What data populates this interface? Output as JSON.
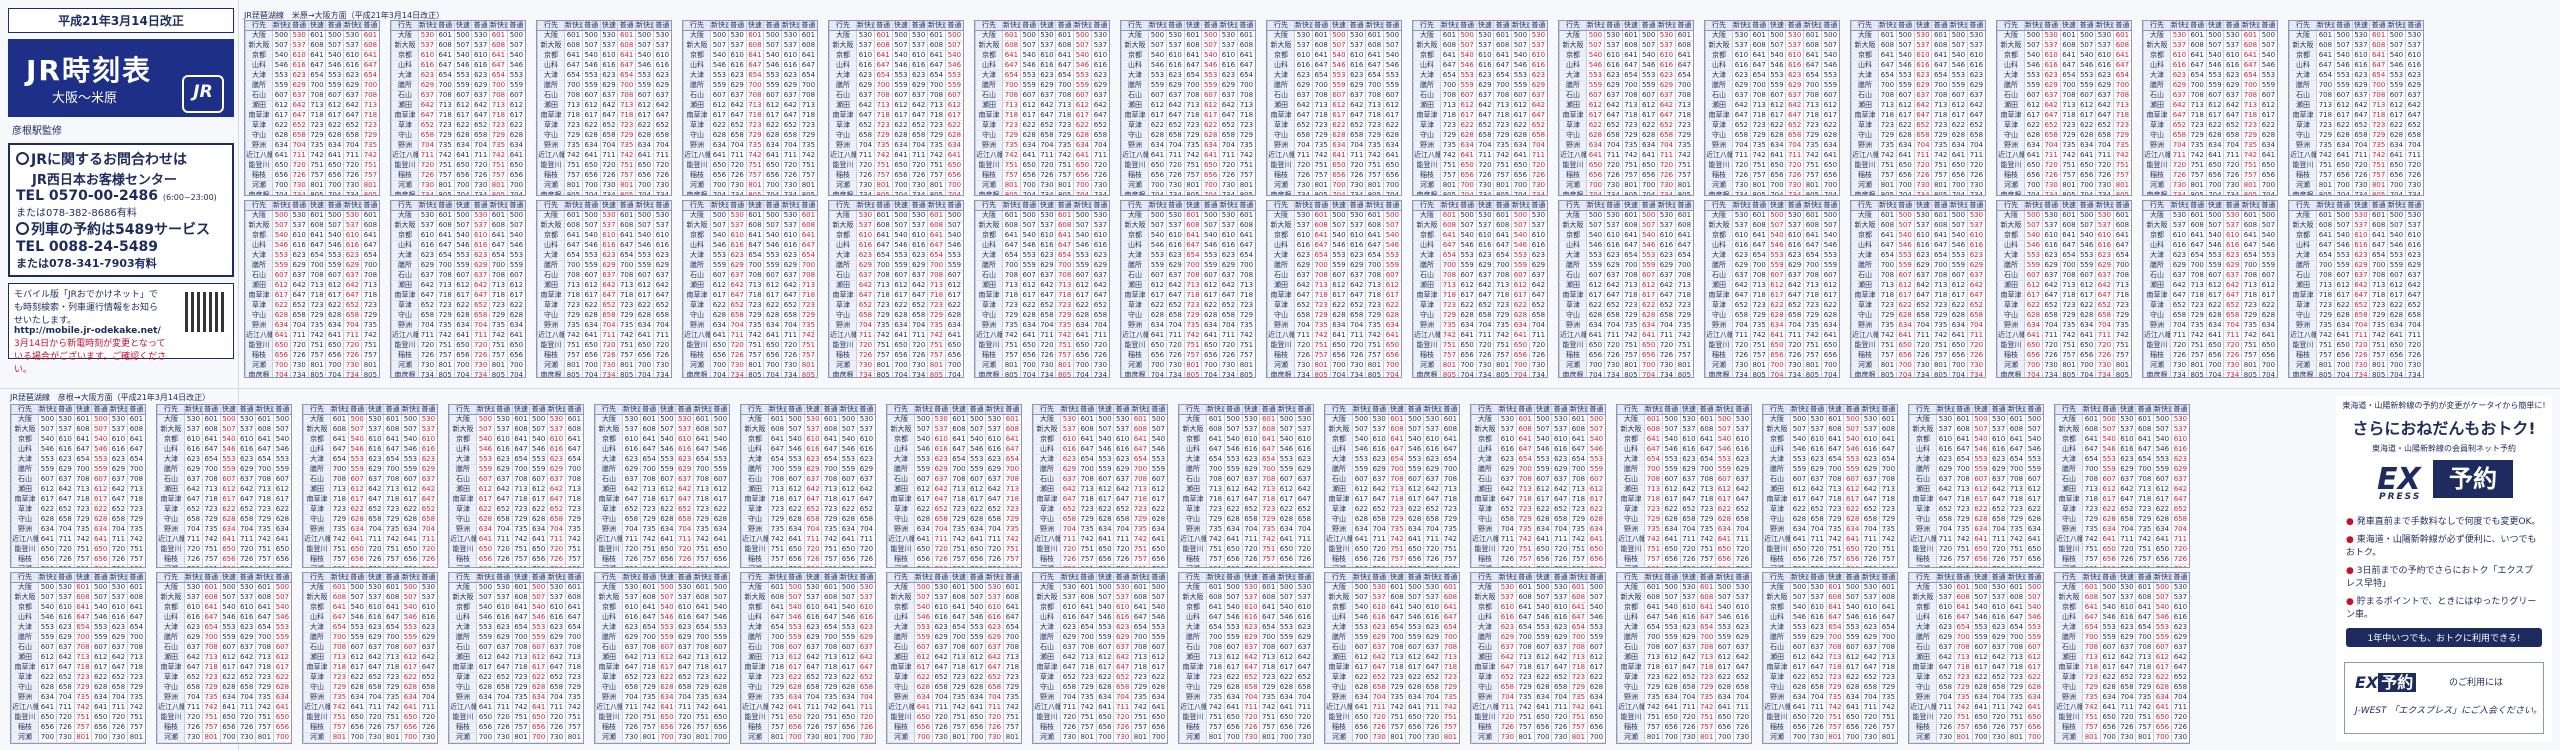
{
  "cover": {
    "date": "平成21年3月14日改正",
    "title": "JR時刻表",
    "route": "大阪～米原",
    "logo": "JR",
    "supervised": "彦根駅監修",
    "contact_heading": "JRに関するお問合わせは",
    "contact_center": "JR西日本お客様センター",
    "phone_main": "TEL 0570-00-2486",
    "phone_hours": "(6:00~23:00)",
    "phone_alt": "または078-382-8686有料",
    "reserve_heading": "列車の予約は5489サービス",
    "phone_reserve": "TEL 0088-24-5489",
    "phone_reserve_alt": "または078-341-7903有料",
    "mobile_text": "モバイル版「JRおでかけネット」でも時刻検索・列車運行情報をお知らせいたします。",
    "mobile_url": "http://mobile.jr-odekake.net/",
    "red_note": "3月14日から新電時刻が変更となっている場合がございます。ご確認ください。"
  },
  "upper_caption": "JR琵琶湖線　米原→大阪方面（平成21年3月14日改正）",
  "lower_caption": "JR琵琶湖線　彦根→大阪方面（平成21年3月14日改正）",
  "timetable": {
    "header": [
      "行先",
      "新快速",
      "普通",
      "快速",
      "普通",
      "新快速",
      "普通",
      "快速",
      "普通",
      "新快速",
      "普通"
    ],
    "stations": [
      "大阪",
      "新大阪",
      "京都",
      "山科",
      "大津",
      "膳所",
      "石山",
      "瀬田",
      "南草津",
      "草津",
      "守山",
      "野洲",
      "近江八幡",
      "能登川",
      "稲枝",
      "河瀬",
      "南彦根",
      "彦根",
      "米原"
    ],
    "times_a": [
      "500",
      "507",
      "540",
      "546",
      "553",
      "559",
      "607",
      "612",
      "617",
      "622",
      "628",
      "634",
      "641",
      "650",
      "656",
      "700",
      "704",
      "708",
      "717"
    ],
    "times_b": [
      "530",
      "537",
      "610",
      "616",
      "623",
      "629",
      "637",
      "642",
      "647",
      "652",
      "658",
      "704",
      "711",
      "720",
      "726",
      "730",
      "734",
      "738",
      "747"
    ],
    "times_c": [
      "601",
      "608",
      "641",
      "647",
      "654",
      "700",
      "708",
      "713",
      "718",
      "723",
      "729",
      "735",
      "742",
      "751",
      "757",
      "801",
      "805",
      "809",
      "818"
    ]
  },
  "ad": {
    "top": "東海道・山陽新幹線の予約が変更がケータイから簡単に!",
    "headline": "さらにおねだんもおトク!",
    "sub": "東海道・山陽新幹線の会員制ネット予約",
    "logo_ex": "EX",
    "logo_yoyaku": "予約",
    "logo_press": "PRESS",
    "bullets": [
      "発車直前まで手数料なしで何度でも変更OK。",
      "東海道・山陽新幹線が必ず便利に、いつでもおトク。",
      "3日前までの予約でさらにおトク「エクスプレス早特」",
      "貯まるポイントで、ときにはゆったりグリーン車。"
    ],
    "banner": "1年中いつでも、おトクに利用できる!",
    "bottom_use": "のご利用には",
    "bottom_jwest": "J-WEST 「エクスプレス」にご入会ください。"
  },
  "colors": {
    "navy": "#1d2f86",
    "red": "#d21f3c"
  }
}
